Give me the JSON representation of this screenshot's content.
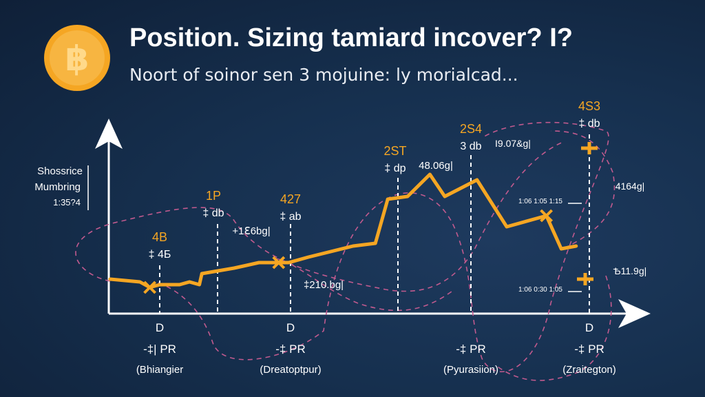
{
  "title": "Position. Sizing tamiard incover? I?",
  "subtitle": "Noort of soinor sen 3 mojuine: ly morialcad...",
  "coin_symbol": "฿",
  "colors": {
    "background": "#16304f",
    "line": "#f5a623",
    "dashed": "#c05a8e",
    "axis": "#ffffff",
    "coin": "#f5a623"
  },
  "y_axis_label": [
    "Shossrice",
    "Mumbring",
    "1:35?4"
  ],
  "chart_data": {
    "type": "line",
    "title": "Position. Sizing tamiard incover? I?",
    "subtitle": "Noort of soinor sen 3 mojuine: ly morialcad...",
    "grid": false,
    "series": [
      {
        "values": [
          [
            0,
            1.0
          ],
          [
            0.6,
            0.9
          ],
          [
            0.8,
            0.7
          ],
          [
            1.0,
            0.8
          ],
          [
            1.4,
            0.8
          ],
          [
            1.6,
            0.9
          ],
          [
            1.8,
            0.8
          ],
          [
            1.85,
            1.2
          ],
          [
            2.5,
            1.4
          ],
          [
            3.0,
            1.6
          ],
          [
            3.4,
            1.6
          ],
          [
            3.6,
            1.6
          ],
          [
            4.0,
            1.8
          ],
          [
            4.9,
            2.2
          ],
          [
            5.35,
            2.3
          ],
          [
            5.6,
            3.9
          ],
          [
            6.0,
            4.0
          ],
          [
            6.45,
            4.8
          ],
          [
            6.75,
            4.0
          ],
          [
            7.4,
            4.6
          ],
          [
            8.0,
            2.9
          ],
          [
            8.8,
            3.3
          ],
          [
            9.1,
            2.1
          ],
          [
            9.4,
            2.2
          ]
        ]
      }
    ],
    "point_labels": [
      {
        "label": "4B",
        "sub": "‡ 4Б",
        "x": 0.9
      },
      {
        "label": "1P",
        "sub": "‡ db",
        "x": 2.1
      },
      {
        "label": "427",
        "sub": "‡ ab",
        "x": 3.6
      },
      {
        "label": "2ST",
        "sub": "‡ dp",
        "x": 5.2
      },
      {
        "label": "2S4",
        "sub": "3 db",
        "x": 6.2
      },
      {
        "label": "4S3",
        "sub": "‡ db",
        "x": 8.6
      }
    ],
    "annotations": [
      "+1ℇ6bg|",
      "‡210.bg|",
      "48.06g|",
      "I9.07&g|",
      "4164g|",
      "Ѣ11.9g|",
      "1:06 1:05 1:15",
      "1:06 0:30 1:05"
    ],
    "x_ticks": [
      {
        "tick": "D",
        "note": "-‡| PR",
        "caption": "(Bhiangier"
      },
      {
        "tick": "D",
        "note": "-‡ PR",
        "caption": "(Dreatoptpur)"
      },
      {
        "tick": "",
        "note": "-‡ PR",
        "caption": "(Pyurasiion)"
      },
      {
        "tick": "D",
        "note": "-‡ PR",
        "caption": "(Zraitegton)"
      }
    ]
  }
}
